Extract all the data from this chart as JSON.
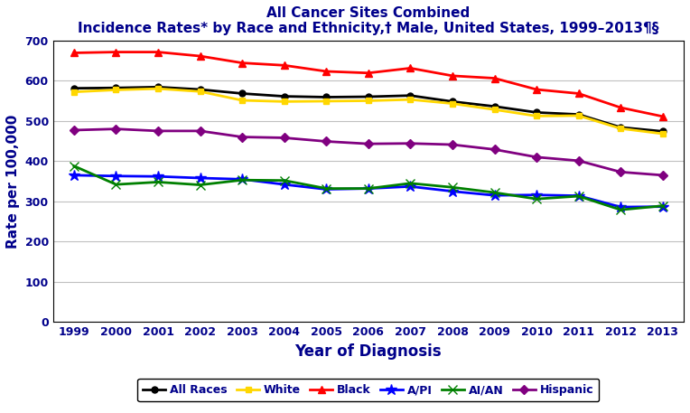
{
  "title_line1": "All Cancer Sites Combined",
  "title_line2": "Incidence Rates* by Race and Ethnicity,† Male, United States, 1999–2013¶§",
  "xlabel": "Year of Diagnosis",
  "ylabel": "Rate per 100,000",
  "years": [
    1999,
    2000,
    2001,
    2002,
    2003,
    2004,
    2005,
    2006,
    2007,
    2008,
    2009,
    2010,
    2011,
    2012,
    2013
  ],
  "series_order": [
    "All Races",
    "White",
    "Black",
    "A/PI",
    "AI/AN",
    "Hispanic"
  ],
  "series": {
    "All Races": {
      "color": "#000000",
      "marker": "o",
      "markersize": 5,
      "linewidth": 2,
      "values": [
        581,
        582,
        584,
        578,
        568,
        561,
        559,
        560,
        563,
        548,
        536,
        521,
        516,
        484,
        474
      ]
    },
    "White": {
      "color": "#FFD700",
      "marker": "s",
      "markersize": 5,
      "linewidth": 2,
      "values": [
        572,
        577,
        580,
        573,
        551,
        548,
        549,
        550,
        553,
        543,
        528,
        512,
        513,
        481,
        468
      ]
    },
    "Black": {
      "color": "#FF0000",
      "marker": "^",
      "markersize": 6,
      "linewidth": 2,
      "values": [
        669,
        671,
        671,
        661,
        644,
        638,
        623,
        619,
        631,
        612,
        606,
        578,
        568,
        533,
        511
      ]
    },
    "A/PI": {
      "color": "#0000FF",
      "marker": "*",
      "markersize": 9,
      "linewidth": 2,
      "values": [
        365,
        363,
        362,
        358,
        355,
        342,
        330,
        332,
        337,
        325,
        315,
        316,
        314,
        286,
        287
      ]
    },
    "AI/AN": {
      "color": "#008000",
      "marker": "x",
      "markersize": 7,
      "linewidth": 2,
      "values": [
        388,
        342,
        348,
        341,
        353,
        352,
        332,
        332,
        345,
        335,
        322,
        306,
        313,
        279,
        289
      ]
    },
    "Hispanic": {
      "color": "#800080",
      "marker": "D",
      "markersize": 5,
      "linewidth": 2,
      "values": [
        477,
        480,
        475,
        475,
        460,
        458,
        449,
        443,
        444,
        441,
        429,
        410,
        401,
        373,
        365
      ]
    }
  },
  "ylim": [
    0,
    700
  ],
  "yticks": [
    0,
    100,
    200,
    300,
    400,
    500,
    600,
    700
  ],
  "background_color": "#FFFFFF",
  "grid_color": "#C0C0C0",
  "title_color": "#00008B",
  "axis_label_color": "#00008B",
  "tick_color": "#00008B"
}
